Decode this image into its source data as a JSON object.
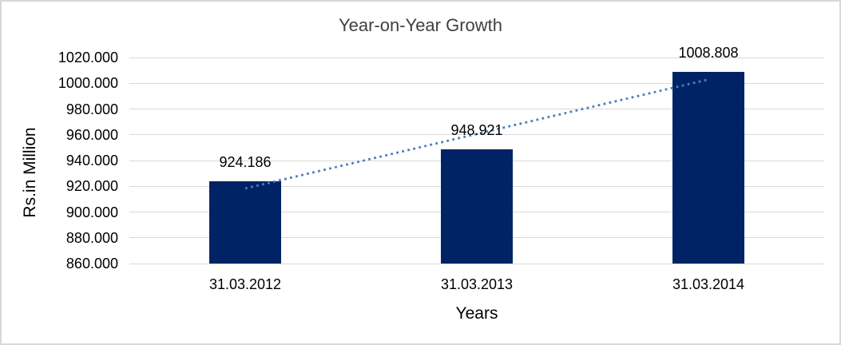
{
  "chart_data": {
    "type": "bar",
    "title": "Year-on-Year Growth",
    "xlabel": "Years",
    "ylabel": "Rs.in Million",
    "categories": [
      "31.03.2012",
      "31.03.2013",
      "31.03.2014"
    ],
    "series": [
      {
        "name": "Year-on-Year Growth",
        "values": [
          924.186,
          948.921,
          1008.808
        ]
      }
    ],
    "value_labels": [
      "924.186",
      "948.921",
      "1008.808"
    ],
    "ylim": [
      860,
      1020
    ],
    "ytick_step": 20,
    "yticks": [
      {
        "value": 1020,
        "label": "1020.000"
      },
      {
        "value": 1000,
        "label": "1000.000"
      },
      {
        "value": 980,
        "label": "980.000"
      },
      {
        "value": 960,
        "label": "960.000"
      },
      {
        "value": 940,
        "label": "940.000"
      },
      {
        "value": 920,
        "label": "920.000"
      },
      {
        "value": 900,
        "label": "900.000"
      },
      {
        "value": 880,
        "label": "880.000"
      },
      {
        "value": 860,
        "label": "860.000"
      }
    ],
    "grid": true,
    "legend_position": "none",
    "bar_color": "#002366",
    "gridline_color": "#d9d9d9",
    "trendline": {
      "type": "linear",
      "style": "dotted",
      "color": "#4a7ebb",
      "fitted_values": [
        918.33,
        960.64,
        1002.95
      ]
    }
  },
  "frame": {
    "border_color": "#d7d7d7",
    "background_color": "#ffffff"
  }
}
